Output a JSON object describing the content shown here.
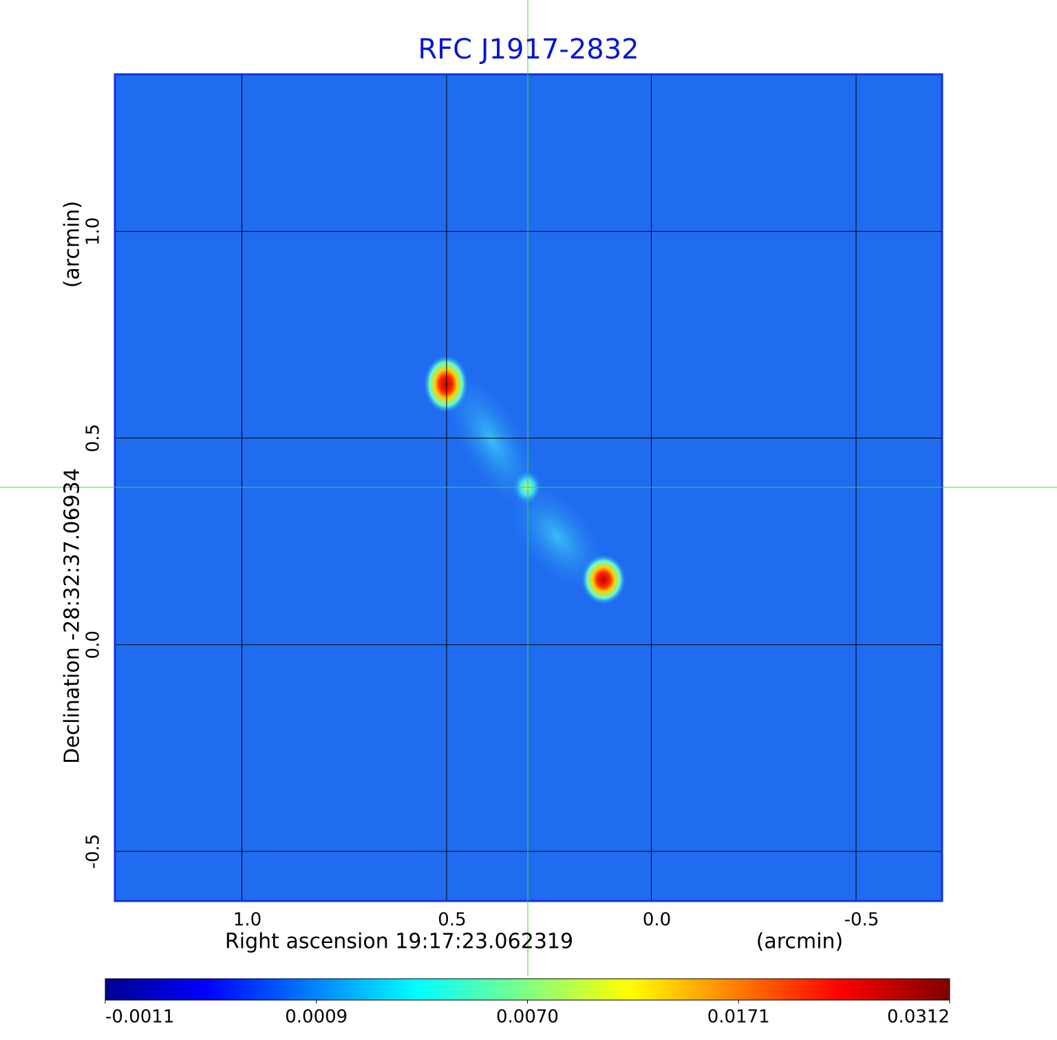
{
  "chart_data": {
    "type": "image",
    "title": "RFC J1917-2832",
    "x_label": "Right ascension  19:17:23.062319",
    "x_unit": "(arcmin)",
    "y_label": "Declination  -28:32:37.06934",
    "y_unit": "(arcmin)",
    "xlim": [
      1.31,
      -0.71
    ],
    "ylim": [
      -0.62,
      1.38
    ],
    "xticks": [
      {
        "value": 1.0,
        "label": "1.0"
      },
      0.5,
      {
        "value": 0.0,
        "label": "0.0"
      },
      -0.5
    ],
    "yticks": [
      {
        "value": 1.0,
        "label": "1.0"
      },
      0.5,
      {
        "value": 0.0,
        "label": "0.0"
      },
      -0.5
    ],
    "grid": true,
    "colorbar_ticks": [
      -0.0011,
      0.0009,
      {
        "value": 0.007,
        "label": "0.0070"
      },
      0.0171,
      0.0312
    ]
  }
}
